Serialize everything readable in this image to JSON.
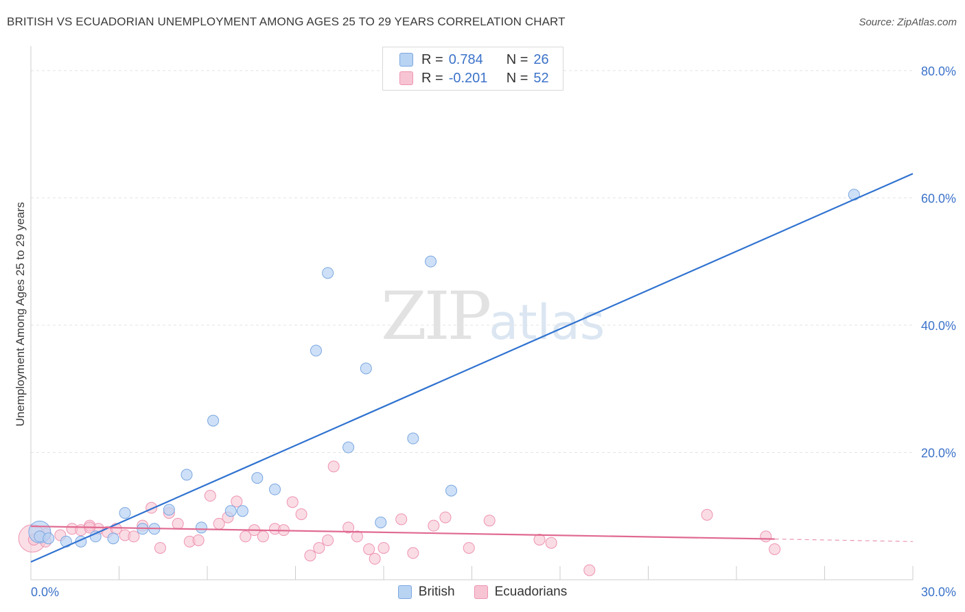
{
  "title": "BRITISH VS ECUADORIAN UNEMPLOYMENT AMONG AGES 25 TO 29 YEARS CORRELATION CHART",
  "source": "Source: ZipAtlas.com",
  "watermark": {
    "zip": "ZIP",
    "atlas": "atlas"
  },
  "legend": {
    "british": {
      "r_label": "R =",
      "r_value": "0.784",
      "n_label": "N =",
      "n_value": "26"
    },
    "ecuadorian": {
      "r_label": "R =",
      "r_value": "-0.201",
      "n_label": "N =",
      "n_value": "52"
    }
  },
  "bottom_legend": {
    "british": "British",
    "ecuadorians": "Ecuadorians"
  },
  "colors": {
    "british_fill": "#b9d3f3",
    "british_stroke": "#7aa7e0",
    "british_line": "#2f72d0",
    "ecuador_fill": "#f7c4d3",
    "ecuador_stroke": "#ee93b0",
    "ecuador_line": "#e06990",
    "axis_text": "#3b72c9",
    "grid": "#e3e3e3"
  },
  "chart_data": {
    "type": "scatter",
    "title": "BRITISH VS ECUADORIAN UNEMPLOYMENT AMONG AGES 25 TO 29 YEARS CORRELATION CHART",
    "xlabel": "",
    "ylabel": "Unemployment Among Ages 25 to 29 years",
    "xlim": [
      0,
      30
    ],
    "ylim": [
      0,
      83
    ],
    "x_tick_labels": [
      "0.0%",
      "30.0%"
    ],
    "y_ticks": [
      20,
      40,
      60,
      80
    ],
    "y_tick_labels": [
      "20.0%",
      "40.0%",
      "60.0%",
      "80.0%"
    ],
    "series": [
      {
        "name": "British",
        "points": [
          [
            0.3,
            6.8
          ],
          [
            0.6,
            6.5
          ],
          [
            1.2,
            6.0
          ],
          [
            1.7,
            6.0
          ],
          [
            2.2,
            6.8
          ],
          [
            2.8,
            6.5
          ],
          [
            3.2,
            10.5
          ],
          [
            3.8,
            8.0
          ],
          [
            4.2,
            8.0
          ],
          [
            4.7,
            11.0
          ],
          [
            5.3,
            16.5
          ],
          [
            5.8,
            8.2
          ],
          [
            6.2,
            25.0
          ],
          [
            6.8,
            10.8
          ],
          [
            7.2,
            10.8
          ],
          [
            7.7,
            16.0
          ],
          [
            8.3,
            14.2
          ],
          [
            9.7,
            36.0
          ],
          [
            10.1,
            48.2
          ],
          [
            10.8,
            20.8
          ],
          [
            11.4,
            33.2
          ],
          [
            11.9,
            9.0
          ],
          [
            13.0,
            22.2
          ],
          [
            13.6,
            50.0
          ],
          [
            14.3,
            14.0
          ],
          [
            28.0,
            60.5
          ]
        ],
        "trend": {
          "x": [
            0,
            30
          ],
          "y": [
            2.8,
            63.8
          ]
        }
      },
      {
        "name": "Ecuadorians",
        "points": [
          [
            0.1,
            6.3
          ],
          [
            0.5,
            6.0
          ],
          [
            1.0,
            7.0
          ],
          [
            1.4,
            8.0
          ],
          [
            1.7,
            7.8
          ],
          [
            2.0,
            8.5
          ],
          [
            2.3,
            8.0
          ],
          [
            2.6,
            7.5
          ],
          [
            2.9,
            8.0
          ],
          [
            3.2,
            7.0
          ],
          [
            3.5,
            6.8
          ],
          [
            3.8,
            8.5
          ],
          [
            4.1,
            11.3
          ],
          [
            4.4,
            5.0
          ],
          [
            4.7,
            10.5
          ],
          [
            5.0,
            8.8
          ],
          [
            5.4,
            6.0
          ],
          [
            5.7,
            6.2
          ],
          [
            6.1,
            13.2
          ],
          [
            6.4,
            8.8
          ],
          [
            6.7,
            9.8
          ],
          [
            7.0,
            12.3
          ],
          [
            7.3,
            6.8
          ],
          [
            7.6,
            7.8
          ],
          [
            7.9,
            6.8
          ],
          [
            8.3,
            8.0
          ],
          [
            8.6,
            7.8
          ],
          [
            8.9,
            12.2
          ],
          [
            9.2,
            10.3
          ],
          [
            9.5,
            3.8
          ],
          [
            9.8,
            5.0
          ],
          [
            10.1,
            6.2
          ],
          [
            10.3,
            17.8
          ],
          [
            10.8,
            8.2
          ],
          [
            11.1,
            6.8
          ],
          [
            11.5,
            4.8
          ],
          [
            11.7,
            3.3
          ],
          [
            12.0,
            5.0
          ],
          [
            12.6,
            9.5
          ],
          [
            13.0,
            4.2
          ],
          [
            13.7,
            8.5
          ],
          [
            14.1,
            9.8
          ],
          [
            14.9,
            5.0
          ],
          [
            15.6,
            9.3
          ],
          [
            17.3,
            6.3
          ],
          [
            17.7,
            5.8
          ],
          [
            19.0,
            1.5
          ],
          [
            23.0,
            10.2
          ],
          [
            25.0,
            6.8
          ],
          [
            25.3,
            4.8
          ],
          [
            0.5,
            7.2
          ],
          [
            2.0,
            8.2
          ]
        ],
        "trend": {
          "x": [
            0,
            25.3
          ],
          "y": [
            8.4,
            6.4
          ],
          "dashed_to": {
            "x": 30,
            "y": 6.0
          }
        }
      }
    ]
  }
}
